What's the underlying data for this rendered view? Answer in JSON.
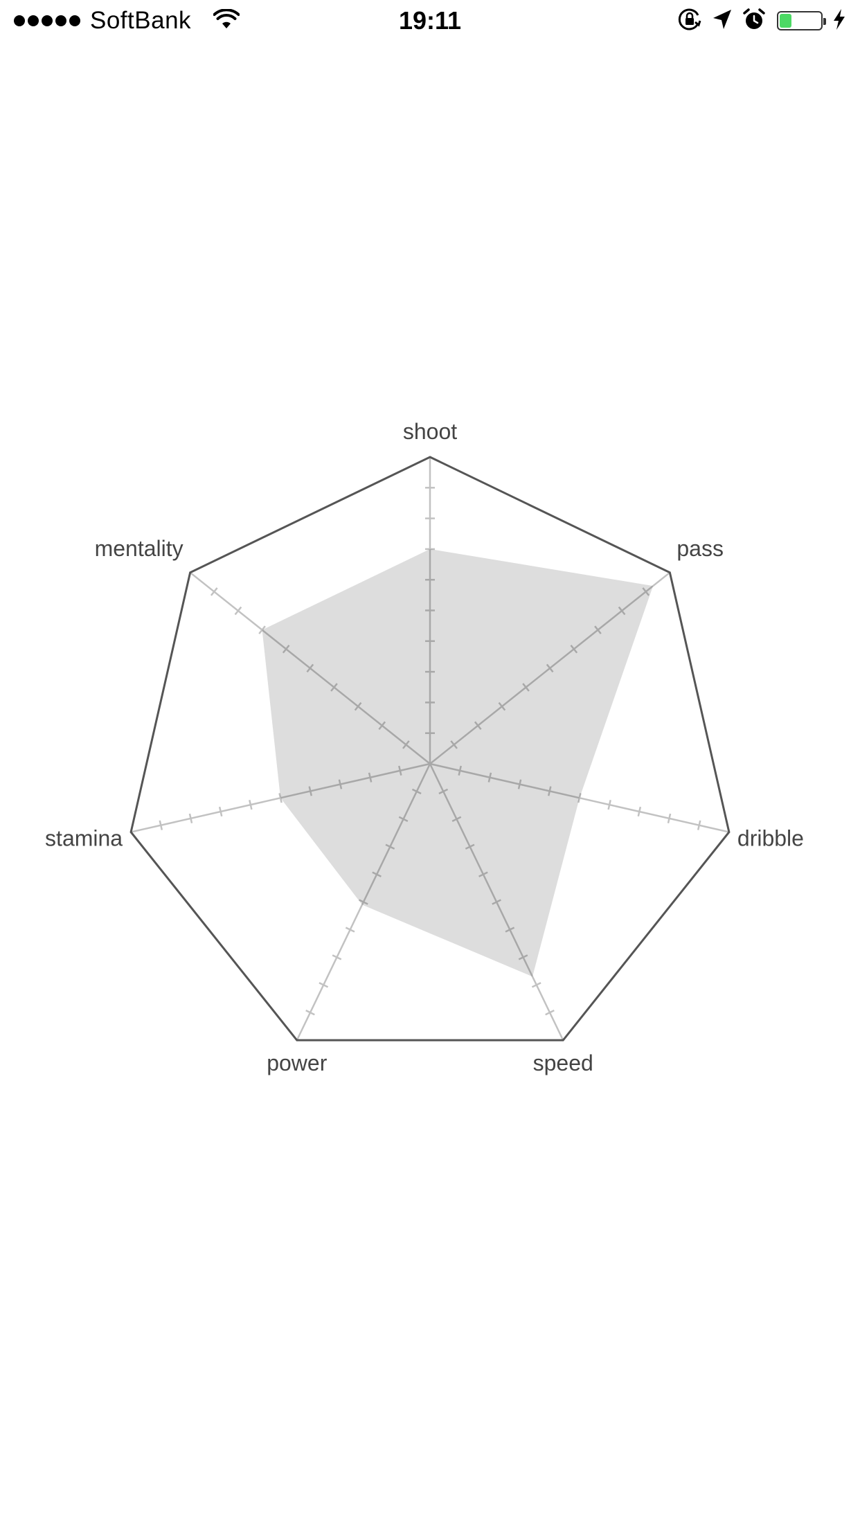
{
  "status_bar": {
    "carrier": "SoftBank",
    "time": "19:11",
    "signal_bars": 5,
    "battery_level": 0.3,
    "battery_color": "#4cd964",
    "icons": [
      "wifi-icon",
      "orientation-lock-icon",
      "location-arrow-icon",
      "alarm-icon",
      "battery-icon",
      "charging-bolt-icon"
    ]
  },
  "chart_data": {
    "type": "radar",
    "axes": [
      "shoot",
      "pass",
      "dribble",
      "speed",
      "power",
      "stamina",
      "mentality"
    ],
    "values": [
      7,
      9.3,
      5,
      7.7,
      5.1,
      5,
      7
    ],
    "max": 10,
    "ticks": 10,
    "fill_color": "#dddddd",
    "outline_color": "#555555",
    "spoke_color": "#c2c2c2",
    "label_color": "#444444",
    "grid": false,
    "legend": "none"
  }
}
